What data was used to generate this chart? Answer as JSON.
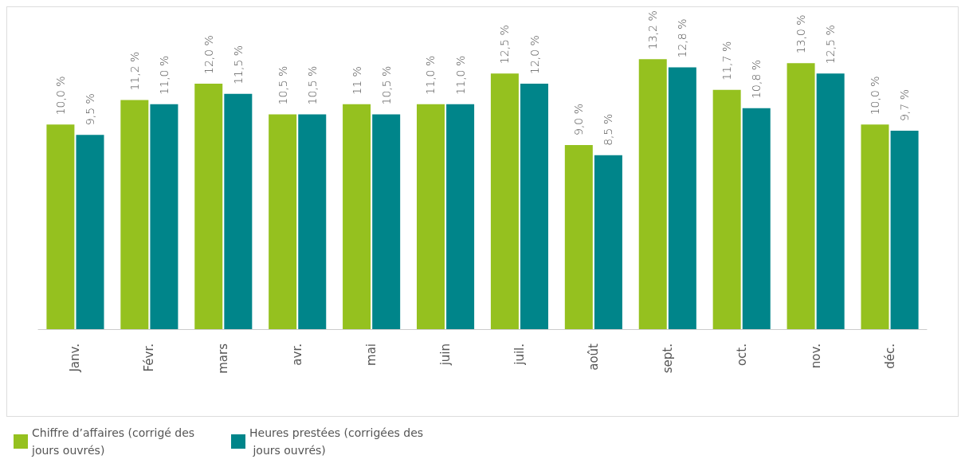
{
  "chart_data": {
    "type": "bar",
    "categories": [
      "Janv.",
      "Févr.",
      "mars",
      "avr.",
      "mai",
      "juin",
      "juil.",
      "août",
      "sept.",
      "oct.",
      "nov.",
      "déc."
    ],
    "series": [
      {
        "name": "Chiffre d’affaires (corrigé des jours ouvrés)",
        "color": "#95c11f",
        "values": [
          10.0,
          11.2,
          12.0,
          10.5,
          11,
          11.0,
          12.5,
          9.0,
          13.2,
          11.7,
          13.0,
          10.0
        ],
        "value_labels": [
          "10,0 %",
          "11,2 %",
          "12,0 %",
          "10,5 %",
          "11 %",
          "11,0 %",
          "12,5 %",
          "9,0 %",
          "13,2 %",
          "11,7 %",
          "13,0 %",
          "10,0 %"
        ]
      },
      {
        "name": "Heures prestées (corrigées des jours ouvrés)",
        "color": "#00858a",
        "values": [
          9.5,
          11.0,
          11.5,
          10.5,
          10.5,
          11.0,
          12.0,
          8.5,
          12.8,
          10.8,
          12.5,
          9.7
        ],
        "value_labels": [
          "9,5 %",
          "11,0 %",
          "11,5 %",
          "10,5 %",
          "10,5 %",
          "11,0 %",
          "12,0 %",
          "8,5 %",
          "12,8 %",
          "10,8 %",
          "12,5 %",
          "9,7 %"
        ]
      }
    ],
    "legend": "bottom left"
  }
}
